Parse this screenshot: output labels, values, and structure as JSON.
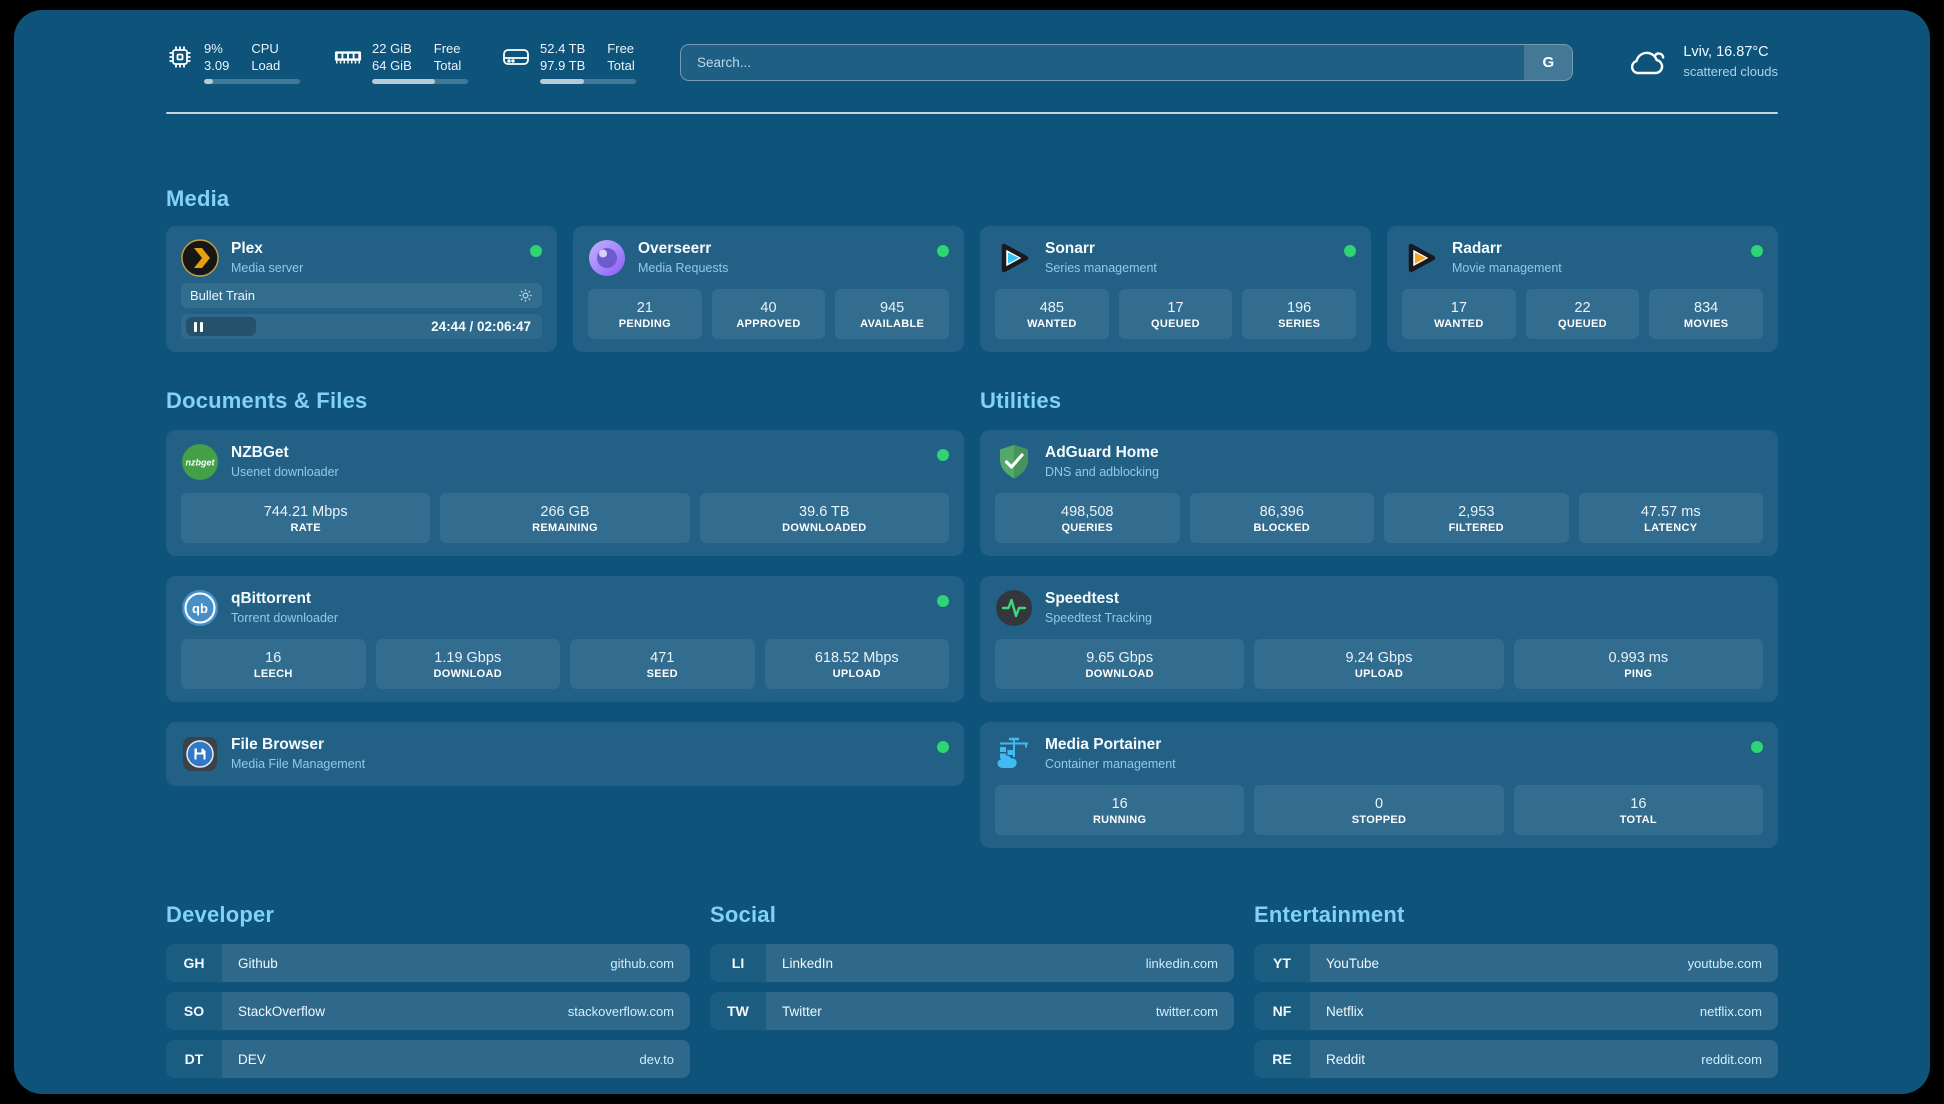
{
  "colors": {
    "background": "#0e537a",
    "accent": "#82d2f5",
    "status_online": "#2ed573"
  },
  "topbar": {
    "cpu": {
      "values": [
        "9%",
        "3.09"
      ],
      "labels": [
        "CPU",
        "Load"
      ],
      "progress": 9
    },
    "ram": {
      "values": [
        "22 GiB",
        "64 GiB"
      ],
      "labels": [
        "Free",
        "Total"
      ],
      "progress": 66
    },
    "disk": {
      "values": [
        "52.4 TB",
        "97.9 TB"
      ],
      "labels": [
        "Free",
        "Total"
      ],
      "progress": 46
    },
    "search": {
      "placeholder": "Search...",
      "engine_button": "G"
    },
    "weather": {
      "location": "Lviv, 16.87°C",
      "condition": "scattered clouds"
    }
  },
  "sections": {
    "media": "Media",
    "documents": "Documents & Files",
    "utilities": "Utilities",
    "developer": "Developer",
    "social": "Social",
    "entertainment": "Entertainment"
  },
  "apps": {
    "plex": {
      "title": "Plex",
      "subtitle": "Media server",
      "now_playing": "Bullet Train",
      "time": "24:44 / 02:06:47",
      "progress_percent": 20
    },
    "overseerr": {
      "title": "Overseerr",
      "subtitle": "Media Requests",
      "stats": [
        {
          "value": "21",
          "label": "PENDING"
        },
        {
          "value": "40",
          "label": "APPROVED"
        },
        {
          "value": "945",
          "label": "AVAILABLE"
        }
      ]
    },
    "sonarr": {
      "title": "Sonarr",
      "subtitle": "Series management",
      "stats": [
        {
          "value": "485",
          "label": "WANTED"
        },
        {
          "value": "17",
          "label": "QUEUED"
        },
        {
          "value": "196",
          "label": "SERIES"
        }
      ]
    },
    "radarr": {
      "title": "Radarr",
      "subtitle": "Movie management",
      "stats": [
        {
          "value": "17",
          "label": "WANTED"
        },
        {
          "value": "22",
          "label": "QUEUED"
        },
        {
          "value": "834",
          "label": "MOVIES"
        }
      ]
    },
    "nzbget": {
      "title": "NZBGet",
      "subtitle": "Usenet downloader",
      "stats": [
        {
          "value": "744.21 Mbps",
          "label": "RATE"
        },
        {
          "value": "266 GB",
          "label": "REMAINING"
        },
        {
          "value": "39.6 TB",
          "label": "DOWNLOADED"
        }
      ]
    },
    "qbittorrent": {
      "title": "qBittorrent",
      "subtitle": "Torrent downloader",
      "stats": [
        {
          "value": "16",
          "label": "LEECH"
        },
        {
          "value": "1.19 Gbps",
          "label": "DOWNLOAD"
        },
        {
          "value": "471",
          "label": "SEED"
        },
        {
          "value": "618.52 Mbps",
          "label": "UPLOAD"
        }
      ]
    },
    "filebrowser": {
      "title": "File Browser",
      "subtitle": "Media File Management"
    },
    "adguard": {
      "title": "AdGuard Home",
      "subtitle": "DNS and adblocking",
      "stats": [
        {
          "value": "498,508",
          "label": "QUERIES"
        },
        {
          "value": "86,396",
          "label": "BLOCKED"
        },
        {
          "value": "2,953",
          "label": "FILTERED"
        },
        {
          "value": "47.57 ms",
          "label": "LATENCY"
        }
      ]
    },
    "speedtest": {
      "title": "Speedtest",
      "subtitle": "Speedtest Tracking",
      "stats": [
        {
          "value": "9.65 Gbps",
          "label": "DOWNLOAD"
        },
        {
          "value": "9.24 Gbps",
          "label": "UPLOAD"
        },
        {
          "value": "0.993 ms",
          "label": "PING"
        }
      ]
    },
    "portainer": {
      "title": "Media Portainer",
      "subtitle": "Container management",
      "stats": [
        {
          "value": "16",
          "label": "RUNNING"
        },
        {
          "value": "0",
          "label": "STOPPED"
        },
        {
          "value": "16",
          "label": "TOTAL"
        }
      ]
    }
  },
  "links": {
    "developer": [
      {
        "abbr": "GH",
        "name": "Github",
        "url": "github.com"
      },
      {
        "abbr": "SO",
        "name": "StackOverflow",
        "url": "stackoverflow.com"
      },
      {
        "abbr": "DT",
        "name": "DEV",
        "url": "dev.to"
      }
    ],
    "social": [
      {
        "abbr": "LI",
        "name": "LinkedIn",
        "url": "linkedin.com"
      },
      {
        "abbr": "TW",
        "name": "Twitter",
        "url": "twitter.com"
      }
    ],
    "entertainment": [
      {
        "abbr": "YT",
        "name": "YouTube",
        "url": "youtube.com"
      },
      {
        "abbr": "NF",
        "name": "Netflix",
        "url": "netflix.com"
      },
      {
        "abbr": "RE",
        "name": "Reddit",
        "url": "reddit.com"
      }
    ]
  }
}
